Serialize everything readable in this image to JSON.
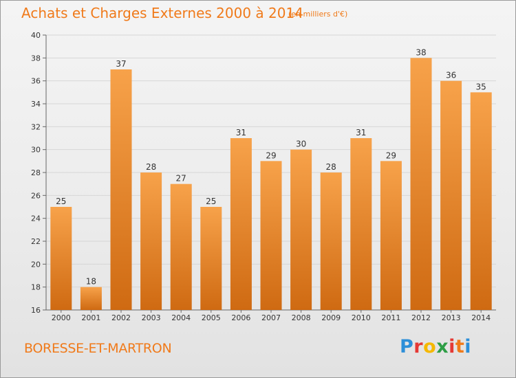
{
  "title": "Achats et Charges Externes 2000 à 2014",
  "subtitle": "(en milliers d'€)",
  "footer": {
    "city": "BORESSE-ET-MARTRON"
  },
  "logo": {
    "letters": [
      "P",
      "r",
      "o",
      "x",
      "i",
      "t",
      "i"
    ],
    "colors": [
      "#2d8fd8",
      "#e53935",
      "#f5b800",
      "#2e9e46",
      "#e53935",
      "#f07a1a",
      "#2d8fd8"
    ]
  },
  "colors": {
    "bar_top": "#f7a24a",
    "bar_bottom": "#cf6a12",
    "title": "#f07a1a"
  },
  "chart_data": {
    "type": "bar",
    "categories": [
      "2000",
      "2001",
      "2002",
      "2003",
      "2004",
      "2005",
      "2006",
      "2007",
      "2008",
      "2009",
      "2010",
      "2011",
      "2012",
      "2013",
      "2014"
    ],
    "values": [
      25,
      18,
      37,
      28,
      27,
      25,
      31,
      29,
      30,
      28,
      31,
      29,
      38,
      36,
      35
    ],
    "ylim": [
      16,
      40
    ],
    "yticks": [
      16,
      18,
      20,
      22,
      24,
      26,
      28,
      30,
      32,
      34,
      36,
      38,
      40
    ],
    "grid": true,
    "xlabel": "",
    "ylabel": ""
  }
}
